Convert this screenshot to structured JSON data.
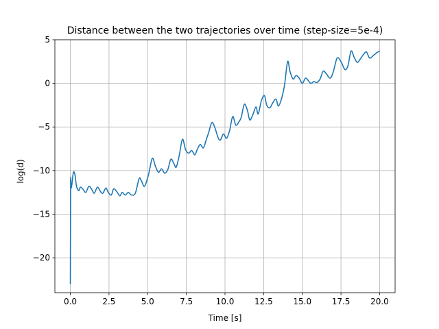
{
  "chart_data": {
    "type": "line",
    "title": "Distance between the two trajectories over time (step-size=5e-4)",
    "xlabel": "Time [s]",
    "ylabel": "log(d)",
    "xlim": [
      -1.0,
      21.0
    ],
    "ylim": [
      -24.0,
      5.0
    ],
    "grid": true,
    "xticks": [
      0.0,
      2.5,
      5.0,
      7.5,
      10.0,
      12.5,
      15.0,
      17.5,
      20.0
    ],
    "xtick_labels": [
      "0.0",
      "2.5",
      "5.0",
      "7.5",
      "10.0",
      "12.5",
      "15.0",
      "17.5",
      "20.0"
    ],
    "yticks": [
      5,
      0,
      -5,
      -10,
      -15,
      -20
    ],
    "ytick_labels": [
      "5",
      "0",
      "−5",
      "−10",
      "−15",
      "−20"
    ],
    "series": [
      {
        "color": "#1f77b4",
        "x": [
          0.0,
          0.02,
          0.05,
          0.1,
          0.2,
          0.3,
          0.4,
          0.55,
          0.65,
          0.8,
          1.0,
          1.2,
          1.4,
          1.55,
          1.75,
          1.95,
          2.1,
          2.3,
          2.45,
          2.65,
          2.8,
          3.0,
          3.2,
          3.35,
          3.55,
          3.75,
          3.95,
          4.2,
          4.45,
          4.6,
          4.8,
          5.05,
          5.3,
          5.5,
          5.7,
          5.9,
          6.1,
          6.3,
          6.5,
          6.7,
          6.85,
          7.05,
          7.25,
          7.45,
          7.65,
          7.85,
          8.05,
          8.2,
          8.4,
          8.6,
          8.8,
          8.95,
          9.15,
          9.35,
          9.55,
          9.7,
          9.9,
          10.1,
          10.3,
          10.5,
          10.7,
          10.9,
          11.05,
          11.25,
          11.45,
          11.6,
          11.8,
          12.0,
          12.15,
          12.35,
          12.55,
          12.7,
          12.9,
          13.1,
          13.3,
          13.45,
          13.65,
          13.85,
          14.05,
          14.2,
          14.4,
          14.6,
          14.8,
          15.0,
          15.2,
          15.35,
          15.55,
          15.75,
          15.95,
          16.15,
          16.35,
          16.55,
          16.8,
          17.0,
          17.25,
          17.5,
          17.75,
          17.95,
          18.15,
          18.35,
          18.55,
          18.75,
          18.95,
          19.15,
          19.35,
          19.6,
          19.8,
          20.0
        ],
        "y": [
          -23.0,
          -11.5,
          -12.0,
          -11.6,
          -10.2,
          -10.5,
          -11.8,
          -12.3,
          -11.9,
          -12.1,
          -12.5,
          -11.8,
          -12.2,
          -12.6,
          -11.9,
          -12.4,
          -12.6,
          -12.0,
          -12.5,
          -12.8,
          -12.1,
          -12.4,
          -12.9,
          -12.5,
          -12.8,
          -12.5,
          -12.8,
          -12.6,
          -10.9,
          -11.2,
          -11.8,
          -10.5,
          -8.6,
          -9.5,
          -10.2,
          -9.8,
          -10.3,
          -9.9,
          -8.7,
          -9.2,
          -9.6,
          -8.2,
          -6.4,
          -7.6,
          -8.0,
          -7.7,
          -8.2,
          -7.6,
          -7.0,
          -7.4,
          -6.4,
          -5.6,
          -4.5,
          -5.1,
          -6.2,
          -6.5,
          -5.8,
          -6.3,
          -5.4,
          -3.8,
          -4.8,
          -4.4,
          -3.9,
          -2.4,
          -3.1,
          -4.2,
          -3.6,
          -2.7,
          -3.5,
          -2.0,
          -1.4,
          -2.5,
          -2.8,
          -2.2,
          -1.8,
          -2.6,
          -1.8,
          -0.2,
          2.5,
          1.4,
          0.5,
          0.9,
          0.6,
          0.0,
          0.6,
          0.4,
          0.0,
          0.2,
          0.1,
          0.5,
          1.4,
          1.1,
          0.6,
          1.3,
          2.9,
          2.5,
          1.6,
          2.0,
          3.7,
          3.0,
          2.4,
          2.8,
          3.3,
          3.6,
          2.9,
          3.2,
          3.5,
          3.7
        ]
      }
    ]
  }
}
